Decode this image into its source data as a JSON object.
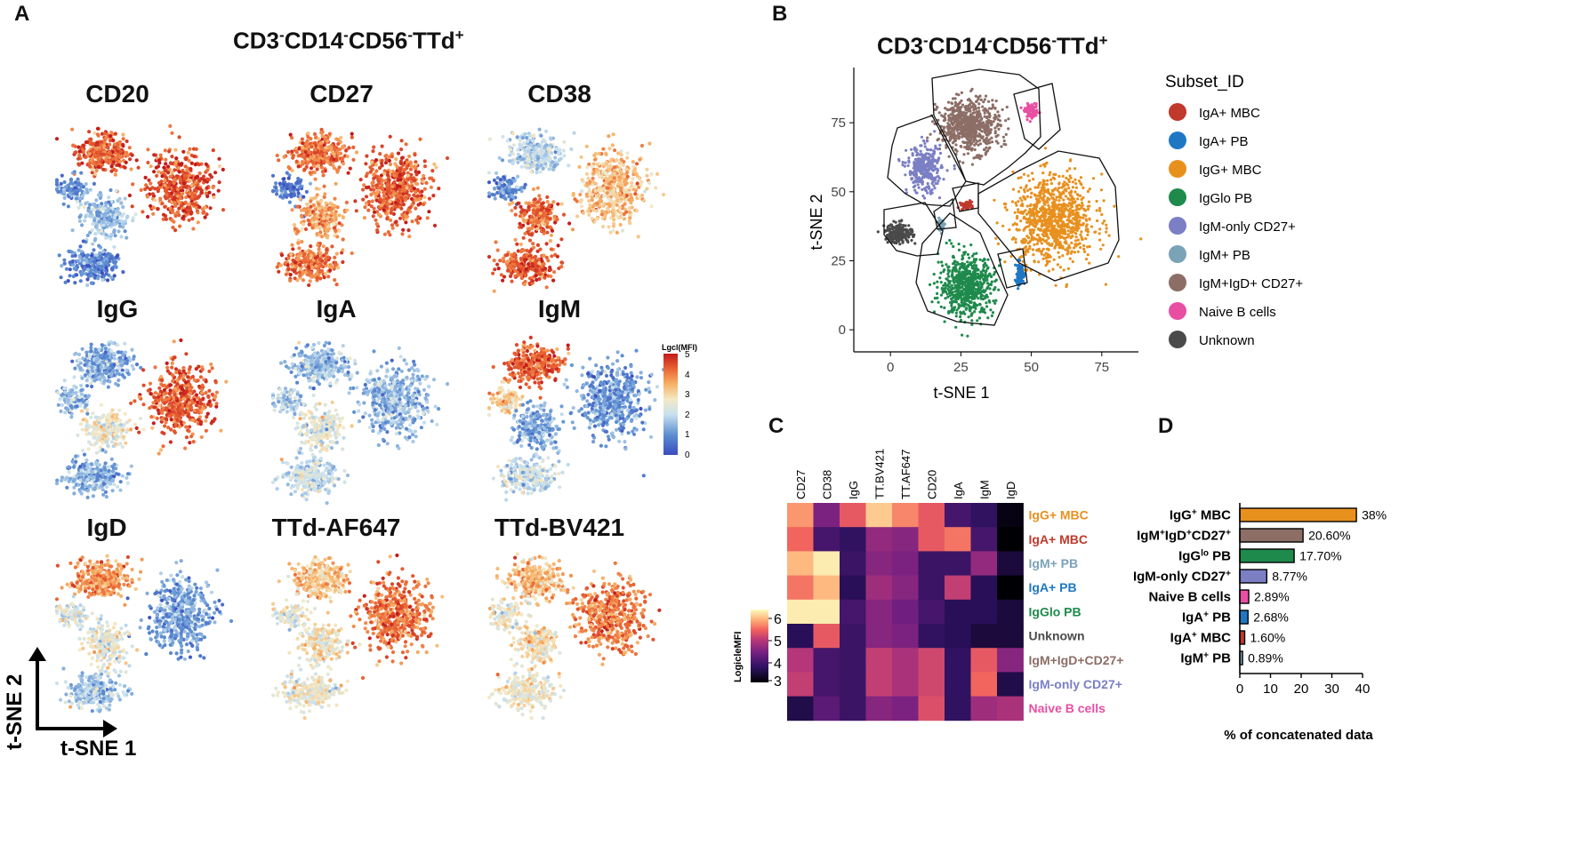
{
  "panel_letters": [
    "A",
    "B",
    "C",
    "D"
  ],
  "panel_a": {
    "title": {
      "main1": "CD3",
      "s1": "-",
      "main2": "CD14",
      "s2": "-",
      "main3": "CD56",
      "s3": "-",
      "main4": "TTd",
      "s4": "+"
    },
    "markers": [
      "CD20",
      "CD27",
      "CD38",
      "IgG",
      "IgA",
      "IgM",
      "IgD",
      "TTd-AF647",
      "TTd-BV421"
    ],
    "colorbar": {
      "title": "Lgcl(MFI)",
      "ticks": [
        "5",
        "4",
        "3",
        "2",
        "1",
        "0"
      ]
    },
    "axes": {
      "x": "t-SNE 1",
      "y": "t-SNE 2"
    }
  },
  "panel_b": {
    "title": {
      "main1": "CD3",
      "s1": "-",
      "main2": "CD14",
      "s2": "-",
      "main3": "CD56",
      "s3": "-",
      "main4": "TTd",
      "s4": "+"
    },
    "legend_title": "Subset_ID",
    "legend": [
      {
        "label": "IgA+ MBC",
        "color": "#c0392b"
      },
      {
        "label": "IgA+ PB",
        "color": "#1f77c4"
      },
      {
        "label": "IgG+ MBC",
        "color": "#e8901e"
      },
      {
        "label": "IgGlo PB",
        "color": "#1e8a4c"
      },
      {
        "label": "IgM-only CD27+",
        "color": "#7b7fc4"
      },
      {
        "label": "IgM+ PB",
        "color": "#7aa3b8"
      },
      {
        "label": "IgM+IgD+ CD27+",
        "color": "#8c6e66"
      },
      {
        "label": "Naive B cells",
        "color": "#e84fa3"
      },
      {
        "label": "Unknown",
        "color": "#4a4a4a"
      }
    ]
  },
  "panel_c": {
    "columns": [
      "CD27",
      "CD38",
      "IgG",
      "TT.BV421",
      "TT.AF647",
      "CD20",
      "IgA",
      "IgM",
      "IgD"
    ],
    "rows": [
      {
        "label": "IgG+ MBC",
        "color": "#e8901e"
      },
      {
        "label": "IgA+ MBC",
        "color": "#c0392b"
      },
      {
        "label": "IgM+ PB",
        "color": "#7aa3b8"
      },
      {
        "label": "IgA+ PB",
        "color": "#1f77c4"
      },
      {
        "label": "IgGlo PB",
        "color": "#1e8a4c"
      },
      {
        "label": "Unknown",
        "color": "#4a4a4a"
      },
      {
        "label": "IgM+IgD+CD27+",
        "color": "#8c6e66"
      },
      {
        "label": "IgM-only CD27+",
        "color": "#7b7fc4"
      },
      {
        "label": "Naive B cells",
        "color": "#e84fa3"
      }
    ],
    "scale_label": "LogicleMFI",
    "scale_ticks": [
      "6",
      "5",
      "4",
      "3"
    ]
  },
  "chart_data": [
    {
      "type": "scatter",
      "title": "CD3-CD14-CD56-TTd+",
      "xlabel": "t-SNE 1",
      "ylabel": "t-SNE 2",
      "xlim": [
        -13,
        88
      ],
      "ylim": [
        -8,
        95
      ],
      "x_ticks": [
        0,
        25,
        50,
        75
      ],
      "y_ticks": [
        0,
        25,
        50,
        75
      ],
      "clusters": [
        {
          "name": "IgG+ MBC",
          "center": [
            58,
            40
          ],
          "spread": [
            12,
            13
          ],
          "n": 900
        },
        {
          "name": "IgM+IgD+ CD27+",
          "center": [
            28,
            74
          ],
          "spread": [
            9,
            8
          ],
          "n": 650
        },
        {
          "name": "IgGlo PB",
          "center": [
            27,
            16
          ],
          "spread": [
            8,
            9
          ],
          "n": 650
        },
        {
          "name": "IgM-only CD27+",
          "center": [
            12,
            58
          ],
          "spread": [
            5,
            7
          ],
          "n": 320
        },
        {
          "name": "Unknown",
          "center": [
            3,
            35
          ],
          "spread": [
            4,
            3
          ],
          "n": 200
        },
        {
          "name": "Naive B cells",
          "center": [
            50,
            79
          ],
          "spread": [
            2,
            2
          ],
          "n": 90
        },
        {
          "name": "IgA+ PB",
          "center": [
            46,
            20
          ],
          "spread": [
            1.5,
            3.5
          ],
          "n": 80
        },
        {
          "name": "IgA+ MBC",
          "center": [
            27,
            45
          ],
          "spread": [
            1.6,
            1.3
          ],
          "n": 60
        },
        {
          "name": "IgM+ PB",
          "center": [
            18,
            38
          ],
          "spread": [
            1.2,
            1.8
          ],
          "n": 40
        }
      ]
    },
    {
      "type": "heatmap",
      "title": "",
      "xlabels": [
        "CD27",
        "CD38",
        "IgG",
        "TT.BV421",
        "TT.AF647",
        "CD20",
        "IgA",
        "IgM",
        "IgD"
      ],
      "ylabels": [
        "IgG+ MBC",
        "IgA+ MBC",
        "IgM+ PB",
        "IgA+ PB",
        "IgGlo PB",
        "Unknown",
        "IgM+IgD+CD27+",
        "IgM-only CD27+",
        "Naive B cells"
      ],
      "colorbar_label": "LogicleMFI",
      "zlim": [
        3,
        6.3
      ],
      "values": [
        [
          5.7,
          4.4,
          5.3,
          6.0,
          5.6,
          5.3,
          3.9,
          3.7,
          3.1
        ],
        [
          5.4,
          3.9,
          3.7,
          4.6,
          4.5,
          5.3,
          5.5,
          3.9,
          2.9
        ],
        [
          5.9,
          6.2,
          3.8,
          4.5,
          4.4,
          3.8,
          3.8,
          4.6,
          3.4
        ],
        [
          5.5,
          5.9,
          3.6,
          4.7,
          4.5,
          3.8,
          5.0,
          3.6,
          3.0
        ],
        [
          6.2,
          6.2,
          3.9,
          4.5,
          4.3,
          3.9,
          3.6,
          3.6,
          3.4
        ],
        [
          3.6,
          5.3,
          3.8,
          4.5,
          4.4,
          3.7,
          3.6,
          3.4,
          3.4
        ],
        [
          4.9,
          3.9,
          3.8,
          5.0,
          4.8,
          5.1,
          3.7,
          5.3,
          4.5
        ],
        [
          5.0,
          3.9,
          3.8,
          5.0,
          4.8,
          5.1,
          3.7,
          5.4,
          3.5
        ],
        [
          3.5,
          4.1,
          3.8,
          4.5,
          4.4,
          5.2,
          3.7,
          4.7,
          4.8
        ]
      ]
    },
    {
      "type": "bar",
      "orientation": "horizontal",
      "title": "",
      "xlabel": "% of concatenated data",
      "ylabel": "",
      "xlim": [
        0,
        40
      ],
      "x_ticks": [
        0,
        10,
        20,
        30,
        40
      ],
      "categories": [
        {
          "base": "IgG",
          "sup": "+",
          "tail": " MBC"
        },
        {
          "base": "IgM",
          "sup": "+",
          "base2": "IgD",
          "sup2": "+",
          "tail": "CD27",
          "sup3": "+"
        },
        {
          "base": "IgG",
          "sup": "lo",
          "tail": " PB"
        },
        {
          "base": "IgM-only CD27",
          "sup": "+",
          "tail": ""
        },
        {
          "base": "Naive B cells",
          "sup": "",
          "tail": ""
        },
        {
          "base": "IgA",
          "sup": "+",
          "tail": " PB"
        },
        {
          "base": "IgA",
          "sup": "+",
          "tail": " MBC"
        },
        {
          "base": "IgM",
          "sup": "+",
          "tail": " PB"
        }
      ],
      "values": [
        38,
        20.6,
        17.7,
        8.77,
        2.89,
        2.68,
        1.6,
        0.89
      ],
      "value_labels": [
        "38%",
        "20.60%",
        "17.70%",
        "8.77%",
        "2.89%",
        "2.68%",
        "1.60%",
        "0.89%"
      ],
      "colors": [
        "#e8901e",
        "#8c6e66",
        "#1e8a4c",
        "#7b7fc4",
        "#e84fa3",
        "#1f77c4",
        "#c0392b",
        "#7aa3b8"
      ]
    }
  ]
}
